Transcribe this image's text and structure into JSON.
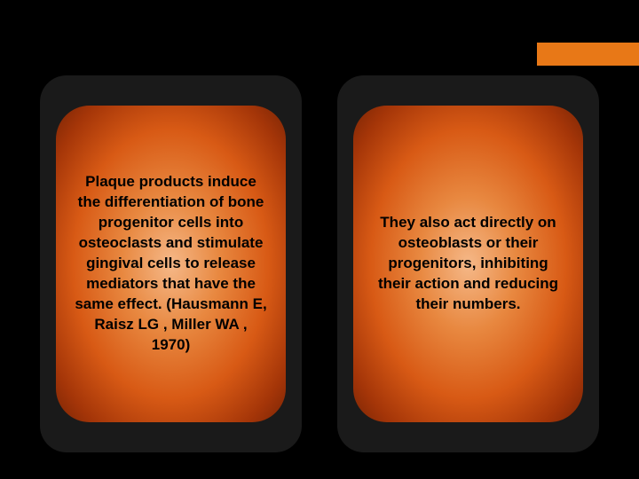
{
  "accent_color": "#e87817",
  "background_color": "#000000",
  "panel_background": "#1a1a1a",
  "gradient_colors": [
    "#f5b888",
    "#e88840",
    "#d85a15",
    "#a43508",
    "#7a2505"
  ],
  "text_color": "#000000",
  "font_size": 17,
  "font_weight": "bold",
  "panels": {
    "left": {
      "text": "Plaque products induce the differentiation of bone progenitor cells into osteoclasts and stimulate gingival cells to release mediators that have the same effect. (Hausmann E, Raisz LG , Miller  WA , 1970)"
    },
    "right": {
      "text": "They also act directly on osteoblasts or their progenitors, inhibiting their action and reducing their numbers."
    }
  }
}
